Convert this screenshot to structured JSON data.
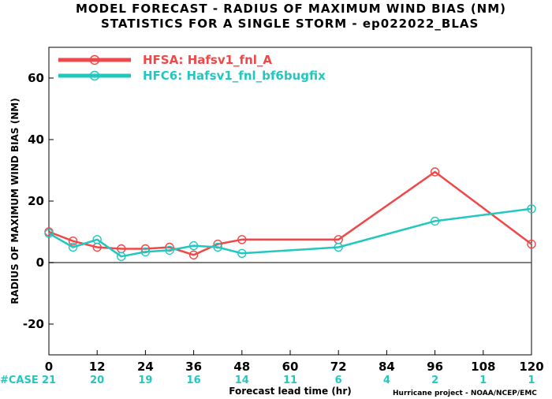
{
  "chart_data": {
    "type": "line",
    "title": "MODEL FORECAST - RADIUS OF MAXIMUM WIND BIAS (NM)",
    "subtitle": "STATISTICS FOR A SINGLE STORM - ep022022_BLAS",
    "xlabel": "Forecast lead time (hr)",
    "ylabel": "RADIUS OF MAXIMUM WIND BIAS (NM)",
    "xlim": [
      0,
      120
    ],
    "ylim": [
      -30,
      70
    ],
    "xticks": [
      0,
      12,
      24,
      36,
      48,
      60,
      72,
      84,
      96,
      108,
      120
    ],
    "yticks": [
      -20,
      0,
      20,
      40,
      60
    ],
    "zero_line": true,
    "legend_position": "top-left",
    "series": [
      {
        "name": "HFSA: Hafsv1_fnl_A",
        "color": "#f04848",
        "points": [
          [
            0,
            10
          ],
          [
            6,
            7
          ],
          [
            12,
            5
          ],
          [
            18,
            4.5
          ],
          [
            24,
            4.5
          ],
          [
            30,
            5
          ],
          [
            36,
            2.5
          ],
          [
            42,
            6
          ],
          [
            48,
            7.5
          ],
          [
            72,
            7.5
          ],
          [
            96,
            29.5
          ],
          [
            120,
            6
          ]
        ]
      },
      {
        "name": "HFC6: Hafsv1_fnl_bf6bugfix",
        "color": "#22c7c0",
        "points": [
          [
            0,
            9.5
          ],
          [
            6,
            5
          ],
          [
            12,
            7.5
          ],
          [
            18,
            2
          ],
          [
            24,
            3.5
          ],
          [
            30,
            4
          ],
          [
            36,
            5.5
          ],
          [
            42,
            5
          ],
          [
            48,
            3
          ],
          [
            72,
            5
          ],
          [
            96,
            13.5
          ],
          [
            120,
            17.5
          ]
        ]
      }
    ],
    "case_label": "#CASE",
    "case_hours": [
      0,
      12,
      24,
      36,
      48,
      60,
      72,
      84,
      96,
      108,
      120
    ],
    "case_counts": [
      21,
      20,
      19,
      16,
      14,
      11,
      6,
      4,
      2,
      1,
      1
    ],
    "case_color": "#22c7c0",
    "credit": "Hurricane project - NOAA/NCEP/EMC"
  }
}
